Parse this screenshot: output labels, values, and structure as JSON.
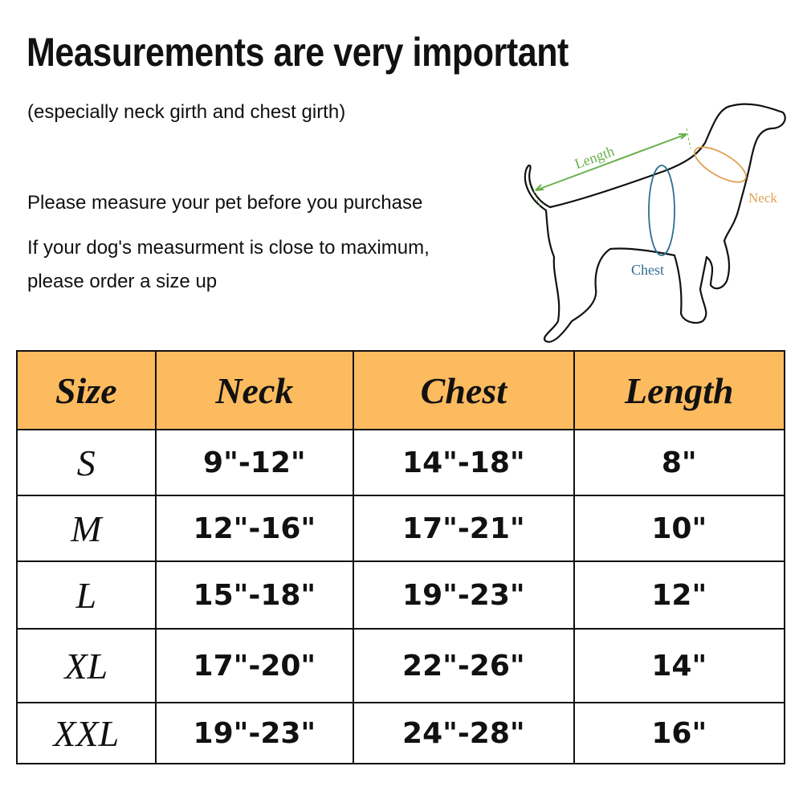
{
  "title": "Measurements are very important",
  "subtitle": "(especially neck girth and chest girth)",
  "notes": [
    "Please measure your pet before you purchase",
    "If your dog's measurment is close to maximum,",
    "please order a size up"
  ],
  "diagram": {
    "length_label": "Length",
    "neck_label": "Neck",
    "chest_label": "Chest",
    "colors": {
      "length": "#6ab04c",
      "neck": "#e0a050",
      "chest": "#2e6e8e"
    }
  },
  "table": {
    "header_color": "#fdbb5f",
    "headers": [
      "Size",
      "Neck",
      "Chest",
      "Length"
    ],
    "rows": [
      [
        "S",
        "9\"-12\"",
        "14\"-18\"",
        "8\""
      ],
      [
        "M",
        "12\"-16\"",
        "17\"-21\"",
        "10\""
      ],
      [
        "L",
        "15\"-18\"",
        "19\"-23\"",
        "12\""
      ],
      [
        "XL",
        "17\"-20\"",
        "22\"-26\"",
        "14\""
      ],
      [
        "XXL",
        "19\"-23\"",
        "24\"-28\"",
        "16\""
      ]
    ]
  }
}
